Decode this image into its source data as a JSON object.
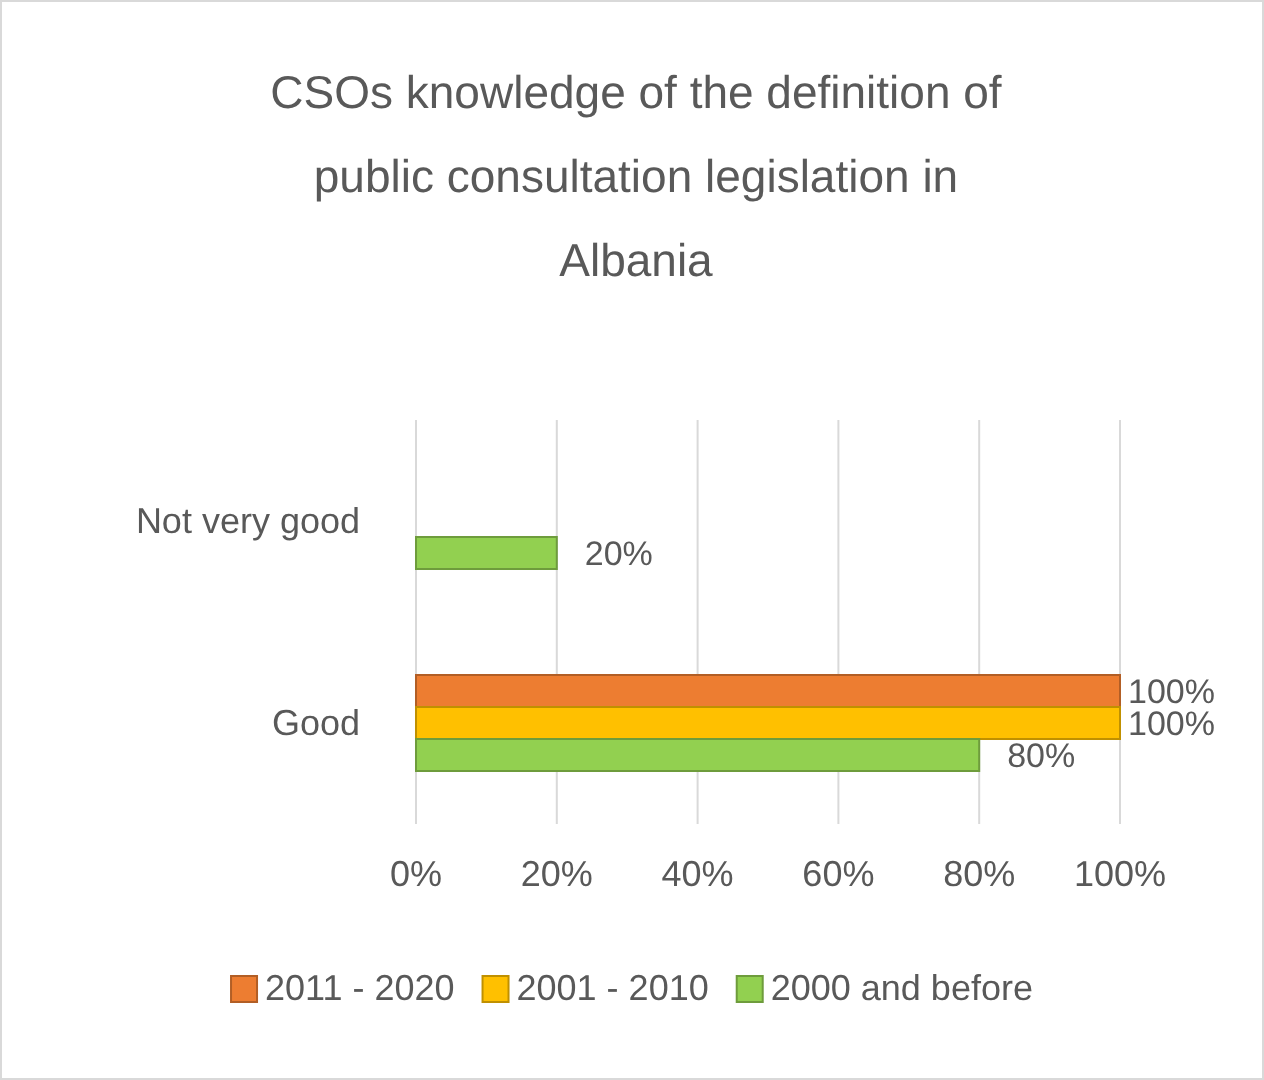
{
  "chart_data": {
    "type": "bar",
    "orientation": "horizontal",
    "title": "CSOs knowledge of the definition of public consultation legislation in Albania",
    "categories": [
      "Not very good",
      "Good"
    ],
    "series": [
      {
        "name": "2011 - 2020",
        "color": "#ed7d31",
        "values": [
          null,
          100
        ],
        "value_labels": [
          null,
          "100%"
        ]
      },
      {
        "name": "2001 - 2010",
        "color": "#ffc000",
        "values": [
          null,
          100
        ],
        "value_labels": [
          null,
          "100%"
        ]
      },
      {
        "name": "2000 and before",
        "color": "#92d050",
        "values": [
          20,
          80
        ],
        "value_labels": [
          "20%",
          "80%"
        ]
      }
    ],
    "xlim": [
      0,
      100
    ],
    "xticks": [
      {
        "value": 0,
        "label": "0%"
      },
      {
        "value": 20,
        "label": "20%"
      },
      {
        "value": 40,
        "label": "40%"
      },
      {
        "value": 60,
        "label": "60%"
      },
      {
        "value": 80,
        "label": "80%"
      },
      {
        "value": 100,
        "label": "100%"
      }
    ],
    "grid": "x",
    "legend": "bottom"
  }
}
